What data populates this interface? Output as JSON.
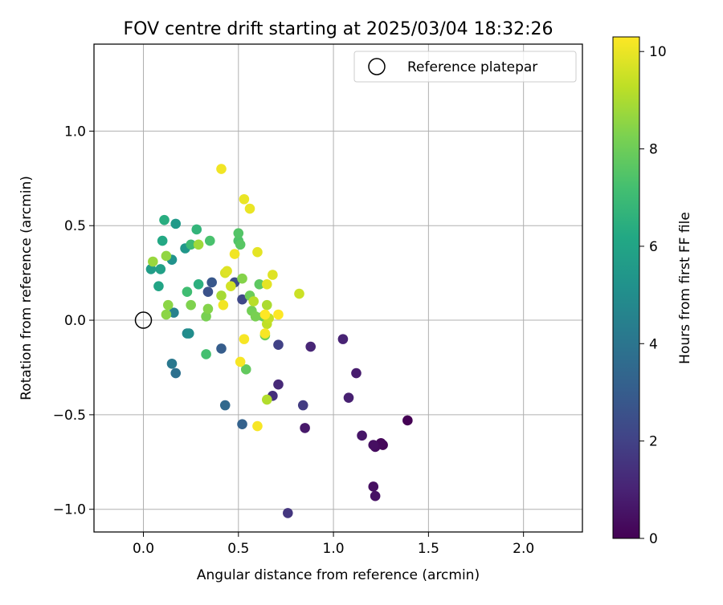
{
  "chart_data": {
    "type": "scatter",
    "title": "FOV centre drift starting at 2025/03/04 18:32:26",
    "xlabel": "Angular distance from reference (arcmin)",
    "ylabel": "Rotation from reference (arcmin)",
    "xlim": [
      -0.26,
      2.31
    ],
    "ylim": [
      -1.12,
      1.46
    ],
    "grid": true,
    "x_ticks": [
      0.0,
      0.5,
      1.0,
      1.5,
      2.0
    ],
    "x_tick_labels": [
      "0.0",
      "0.5",
      "1.0",
      "1.5",
      "2.0"
    ],
    "y_ticks": [
      -1.0,
      -0.5,
      0.0,
      0.5,
      1.0
    ],
    "y_tick_labels": [
      "−1.0",
      "−0.5",
      "0.0",
      "0.5",
      "1.0"
    ],
    "legend": {
      "placement": "top-right",
      "entries": [
        "Reference platepar"
      ]
    },
    "reference_point": {
      "label": "Reference platepar",
      "x": 0.0,
      "y": 0.0,
      "marker": "open-circle"
    },
    "colorbar": {
      "label": "Hours from first FF file",
      "colormap": "viridis",
      "min": 0,
      "max": 10.3,
      "ticks": [
        0,
        2,
        4,
        6,
        8,
        10
      ],
      "tick_labels": [
        "0",
        "2",
        "4",
        "6",
        "8",
        "10"
      ]
    },
    "series": [
      {
        "name": "",
        "points": [
          {
            "x": 1.39,
            "y": -0.53,
            "h": 0.0
          },
          {
            "x": 1.26,
            "y": -0.66,
            "h": 0.1
          },
          {
            "x": 1.25,
            "y": -0.65,
            "h": 0.2
          },
          {
            "x": 1.22,
            "y": -0.67,
            "h": 0.3
          },
          {
            "x": 1.21,
            "y": -0.66,
            "h": 0.4
          },
          {
            "x": 1.21,
            "y": -0.88,
            "h": 0.4
          },
          {
            "x": 1.22,
            "y": -0.93,
            "h": 0.5
          },
          {
            "x": 1.15,
            "y": -0.61,
            "h": 0.6
          },
          {
            "x": 0.85,
            "y": -0.57,
            "h": 0.7
          },
          {
            "x": 1.12,
            "y": -0.28,
            "h": 0.8
          },
          {
            "x": 1.08,
            "y": -0.41,
            "h": 0.9
          },
          {
            "x": 1.05,
            "y": -0.1,
            "h": 1.0
          },
          {
            "x": 0.88,
            "y": -0.14,
            "h": 1.1
          },
          {
            "x": 0.71,
            "y": -0.34,
            "h": 1.2
          },
          {
            "x": 0.68,
            "y": -0.4,
            "h": 1.4
          },
          {
            "x": 0.76,
            "y": -1.02,
            "h": 1.6
          },
          {
            "x": 0.84,
            "y": -0.45,
            "h": 1.8
          },
          {
            "x": 0.71,
            "y": -0.13,
            "h": 2.0
          },
          {
            "x": 0.52,
            "y": 0.11,
            "h": 2.2
          },
          {
            "x": 0.48,
            "y": 0.2,
            "h": 2.4
          },
          {
            "x": 0.34,
            "y": 0.15,
            "h": 2.6
          },
          {
            "x": 0.36,
            "y": 0.2,
            "h": 2.8
          },
          {
            "x": 0.41,
            "y": -0.15,
            "h": 3.0
          },
          {
            "x": 0.52,
            "y": -0.55,
            "h": 3.2
          },
          {
            "x": 0.43,
            "y": -0.45,
            "h": 3.5
          },
          {
            "x": 0.17,
            "y": -0.28,
            "h": 3.8
          },
          {
            "x": 0.15,
            "y": -0.23,
            "h": 4.1
          },
          {
            "x": 0.16,
            "y": 0.04,
            "h": 4.5
          },
          {
            "x": 0.23,
            "y": -0.07,
            "h": 4.8
          },
          {
            "x": 0.24,
            "y": -0.07,
            "h": 5.0
          },
          {
            "x": 0.15,
            "y": 0.32,
            "h": 5.2
          },
          {
            "x": 0.22,
            "y": 0.38,
            "h": 5.4
          },
          {
            "x": 0.17,
            "y": 0.51,
            "h": 5.5
          },
          {
            "x": 0.04,
            "y": 0.27,
            "h": 5.7
          },
          {
            "x": 0.09,
            "y": 0.27,
            "h": 5.8
          },
          {
            "x": 0.08,
            "y": 0.18,
            "h": 6.0
          },
          {
            "x": 0.1,
            "y": 0.42,
            "h": 6.2
          },
          {
            "x": 0.11,
            "y": 0.53,
            "h": 6.4
          },
          {
            "x": 0.29,
            "y": 0.19,
            "h": 6.5
          },
          {
            "x": 0.28,
            "y": 0.48,
            "h": 6.7
          },
          {
            "x": 0.25,
            "y": 0.4,
            "h": 7.0
          },
          {
            "x": 0.23,
            "y": 0.15,
            "h": 7.1
          },
          {
            "x": 0.33,
            "y": -0.18,
            "h": 7.2
          },
          {
            "x": 0.35,
            "y": 0.42,
            "h": 7.3
          },
          {
            "x": 0.5,
            "y": 0.42,
            "h": 7.4
          },
          {
            "x": 0.5,
            "y": 0.46,
            "h": 7.5
          },
          {
            "x": 0.51,
            "y": 0.4,
            "h": 7.6
          },
          {
            "x": 0.61,
            "y": 0.19,
            "h": 7.7
          },
          {
            "x": 0.54,
            "y": -0.26,
            "h": 7.8
          },
          {
            "x": 0.63,
            "y": 0.02,
            "h": 7.9
          },
          {
            "x": 0.64,
            "y": -0.08,
            "h": 8.0
          },
          {
            "x": 0.56,
            "y": 0.13,
            "h": 8.0
          },
          {
            "x": 0.57,
            "y": 0.05,
            "h": 8.1
          },
          {
            "x": 0.59,
            "y": 0.02,
            "h": 8.2
          },
          {
            "x": 0.33,
            "y": 0.02,
            "h": 8.2
          },
          {
            "x": 0.25,
            "y": 0.08,
            "h": 8.3
          },
          {
            "x": 0.34,
            "y": 0.06,
            "h": 8.4
          },
          {
            "x": 0.52,
            "y": 0.22,
            "h": 8.4
          },
          {
            "x": 0.12,
            "y": 0.03,
            "h": 8.5
          },
          {
            "x": 0.13,
            "y": 0.08,
            "h": 8.5
          },
          {
            "x": 0.12,
            "y": 0.34,
            "h": 8.6
          },
          {
            "x": 0.05,
            "y": 0.31,
            "h": 8.7
          },
          {
            "x": 0.29,
            "y": 0.4,
            "h": 8.8
          },
          {
            "x": 0.41,
            "y": 0.13,
            "h": 8.9
          },
          {
            "x": 0.65,
            "y": 0.08,
            "h": 9.0
          },
          {
            "x": 0.65,
            "y": -0.42,
            "h": 9.1
          },
          {
            "x": 0.58,
            "y": 0.1,
            "h": 9.2
          },
          {
            "x": 0.65,
            "y": -0.02,
            "h": 9.3
          },
          {
            "x": 0.66,
            "y": 0.01,
            "h": 9.4
          },
          {
            "x": 0.82,
            "y": 0.14,
            "h": 9.5
          },
          {
            "x": 0.46,
            "y": 0.18,
            "h": 9.6
          },
          {
            "x": 0.43,
            "y": 0.25,
            "h": 9.7
          },
          {
            "x": 0.44,
            "y": 0.26,
            "h": 9.8
          },
          {
            "x": 0.68,
            "y": 0.24,
            "h": 9.8
          },
          {
            "x": 0.6,
            "y": 0.36,
            "h": 9.9
          },
          {
            "x": 0.65,
            "y": 0.19,
            "h": 9.9
          },
          {
            "x": 0.56,
            "y": 0.59,
            "h": 10.0
          },
          {
            "x": 0.53,
            "y": 0.64,
            "h": 10.0
          },
          {
            "x": 0.41,
            "y": 0.8,
            "h": 10.1
          },
          {
            "x": 0.48,
            "y": 0.35,
            "h": 10.1
          },
          {
            "x": 0.42,
            "y": 0.08,
            "h": 10.1
          },
          {
            "x": 0.53,
            "y": -0.1,
            "h": 10.2
          },
          {
            "x": 0.51,
            "y": -0.22,
            "h": 10.2
          },
          {
            "x": 0.6,
            "y": -0.56,
            "h": 10.2
          },
          {
            "x": 0.64,
            "y": -0.07,
            "h": 10.2
          },
          {
            "x": 0.64,
            "y": 0.03,
            "h": 10.3
          },
          {
            "x": 0.71,
            "y": 0.03,
            "h": 10.3
          }
        ]
      }
    ]
  }
}
